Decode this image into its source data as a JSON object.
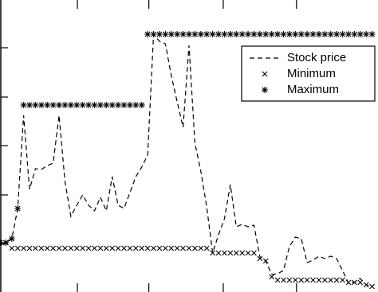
{
  "chart_data": {
    "type": "line",
    "x": [
      0,
      1,
      2,
      3,
      4,
      5,
      6,
      7,
      8,
      9,
      10,
      11,
      12,
      13,
      14,
      15,
      16,
      17,
      18,
      19,
      20,
      21,
      22,
      23,
      24,
      25,
      26,
      27,
      28,
      29,
      30,
      31,
      32,
      33,
      34,
      35,
      36,
      37,
      38,
      39,
      40,
      41,
      42,
      43,
      44,
      45,
      46,
      47,
      48,
      49,
      50,
      51,
      52,
      53,
      54,
      55,
      56,
      57,
      58,
      59,
      60,
      61,
      62,
      63
    ],
    "series": [
      {
        "name": "Stock price",
        "style": "dashed",
        "color": "#000000",
        "values": [
          62,
          62,
          67,
          105,
          222,
          129,
          155,
          154,
          159,
          162,
          222,
          139,
          95,
          109,
          122,
          109,
          102,
          119,
          102,
          145,
          109,
          105,
          125,
          145,
          157,
          172,
          324,
          315,
          312,
          272,
          239,
          207,
          310,
          187,
          152,
          107,
          49,
          72,
          92,
          135,
          82,
          85,
          82,
          84,
          44,
          39,
          22,
          23,
          27,
          57,
          69,
          67,
          37,
          40,
          45,
          42,
          45,
          42,
          27,
          11,
          12,
          17,
          9,
          7
        ]
      },
      {
        "name": "Minimum",
        "style": "x",
        "color": "#000000",
        "values": [
          62,
          62,
          55,
          55,
          55,
          55,
          55,
          55,
          55,
          55,
          55,
          55,
          55,
          55,
          55,
          55,
          55,
          55,
          55,
          55,
          55,
          55,
          55,
          55,
          55,
          55,
          55,
          55,
          55,
          55,
          55,
          55,
          55,
          55,
          55,
          55,
          49,
          49,
          49,
          49,
          49,
          49,
          49,
          49,
          42,
          39,
          19,
          15,
          15,
          15,
          15,
          15,
          15,
          15,
          15,
          15,
          15,
          15,
          15,
          12,
          12,
          12,
          9,
          7
        ]
      },
      {
        "name": "Maximum",
        "style": "star",
        "color": "#000000",
        "values": [
          62,
          62,
          67,
          105,
          235,
          235,
          235,
          235,
          235,
          235,
          235,
          235,
          235,
          235,
          235,
          235,
          235,
          235,
          235,
          235,
          235,
          235,
          235,
          235,
          235,
          324,
          324,
          324,
          324,
          324,
          324,
          324,
          324,
          324,
          324,
          324,
          324,
          324,
          324,
          324,
          324,
          324,
          324,
          324,
          324,
          324,
          324,
          324,
          324,
          324,
          324,
          324,
          324,
          324,
          324,
          324,
          324,
          324,
          324,
          324,
          324,
          324,
          324,
          324
        ]
      }
    ],
    "xlim": [
      0,
      64
    ],
    "xticks": [
      13.1,
      25.2,
      37.8,
      50.2
    ],
    "ylim": [
      0,
      367
    ],
    "yticks": [
      61,
      122,
      184,
      245,
      307
    ],
    "legend": "upper right"
  }
}
